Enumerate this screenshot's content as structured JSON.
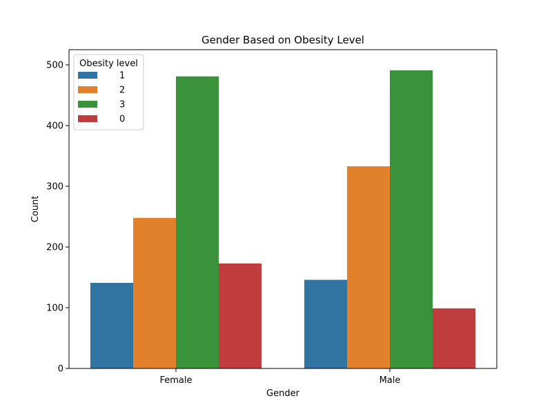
{
  "chart_data": {
    "type": "bar",
    "title": "Gender Based on Obesity Level",
    "xlabel": "Gender",
    "ylabel": "Count",
    "categories": [
      "Female",
      "Male"
    ],
    "ylim": [
      0,
      525
    ],
    "yticks": [
      0,
      100,
      200,
      300,
      400,
      500
    ],
    "legend": {
      "title": "Obesity level",
      "position": "top-left"
    },
    "series": [
      {
        "name": "1",
        "color": "#3274a1",
        "values": [
          141,
          146
        ]
      },
      {
        "name": "2",
        "color": "#e1812c",
        "values": [
          248,
          333
        ]
      },
      {
        "name": "3",
        "color": "#3a923a",
        "values": [
          481,
          491
        ]
      },
      {
        "name": "0",
        "color": "#c03d3e",
        "values": [
          173,
          99
        ]
      }
    ],
    "grid": false
  }
}
